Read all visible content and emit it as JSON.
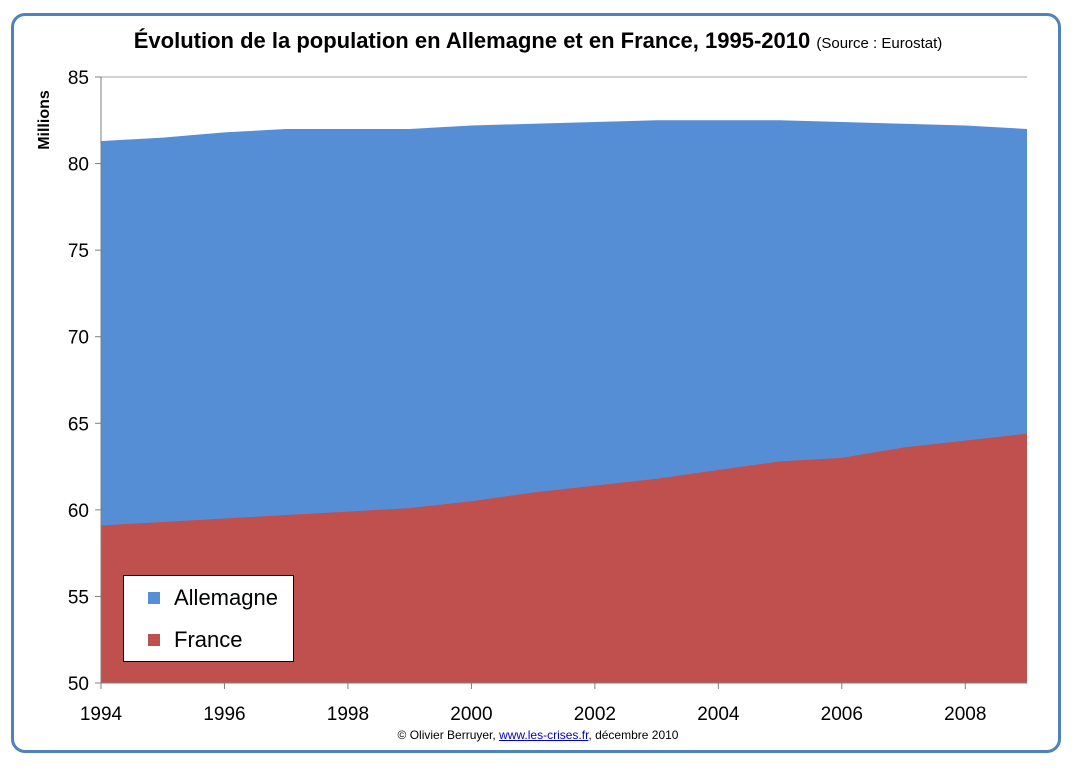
{
  "title": "Évolution de la population en Allemagne et en France, 1995-2010",
  "title_source": "(Source : Eurostat)",
  "footer": {
    "prefix": "© Olivier Berruyer, ",
    "link": "www.les-crises.fr",
    "suffix": ", décembre 2010"
  },
  "colors": {
    "allemagne": "#558ed5",
    "france": "#c0504d",
    "frame": "#4f81bd"
  },
  "chart_data": {
    "type": "area",
    "stacked": false,
    "x": [
      1994,
      1995,
      1996,
      1997,
      1998,
      1999,
      2000,
      2001,
      2002,
      2003,
      2004,
      2005,
      2006,
      2007,
      2008,
      2009
    ],
    "series": [
      {
        "name": "Allemagne",
        "values": [
          81.3,
          81.5,
          81.8,
          82.0,
          82.0,
          82.0,
          82.2,
          82.3,
          82.4,
          82.5,
          82.5,
          82.5,
          82.4,
          82.3,
          82.2,
          82.0
        ]
      },
      {
        "name": "France",
        "values": [
          59.1,
          59.3,
          59.5,
          59.7,
          59.9,
          60.1,
          60.5,
          61.0,
          61.4,
          61.8,
          62.3,
          62.8,
          63.0,
          63.6,
          64.0,
          64.4
        ]
      }
    ],
    "ylabel": "Millions",
    "xlabel": "",
    "ylim": [
      50,
      85
    ],
    "yticks": [
      50,
      55,
      60,
      65,
      70,
      75,
      80,
      85
    ],
    "xticks": [
      1994,
      1996,
      1998,
      2000,
      2002,
      2004,
      2006,
      2008
    ],
    "grid": "horizontal",
    "legend_position": "bottom-left"
  }
}
